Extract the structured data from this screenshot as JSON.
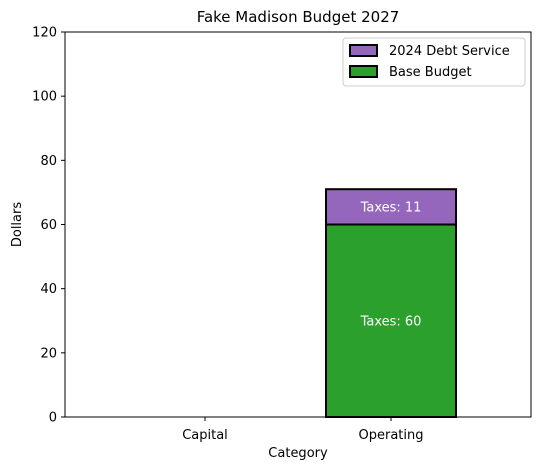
{
  "chart_data": {
    "type": "bar",
    "stacked": true,
    "title": "Fake Madison Budget 2027",
    "xlabel": "Category",
    "ylabel": "Dollars",
    "categories": [
      "Capital",
      "Operating"
    ],
    "ylim": [
      0,
      120
    ],
    "yticks": [
      0,
      20,
      40,
      60,
      80,
      100,
      120
    ],
    "grid": false,
    "legend_position": "top-right",
    "series": [
      {
        "name": "Base Budget",
        "color": "#2ca02c",
        "values": [
          0,
          60
        ],
        "labels": [
          "",
          "Taxes: 60"
        ]
      },
      {
        "name": "2024 Debt Service",
        "color": "#9467bd",
        "values": [
          0,
          11
        ],
        "labels": [
          "",
          "Taxes: 11"
        ]
      }
    ],
    "legend_order": [
      1,
      0
    ]
  }
}
